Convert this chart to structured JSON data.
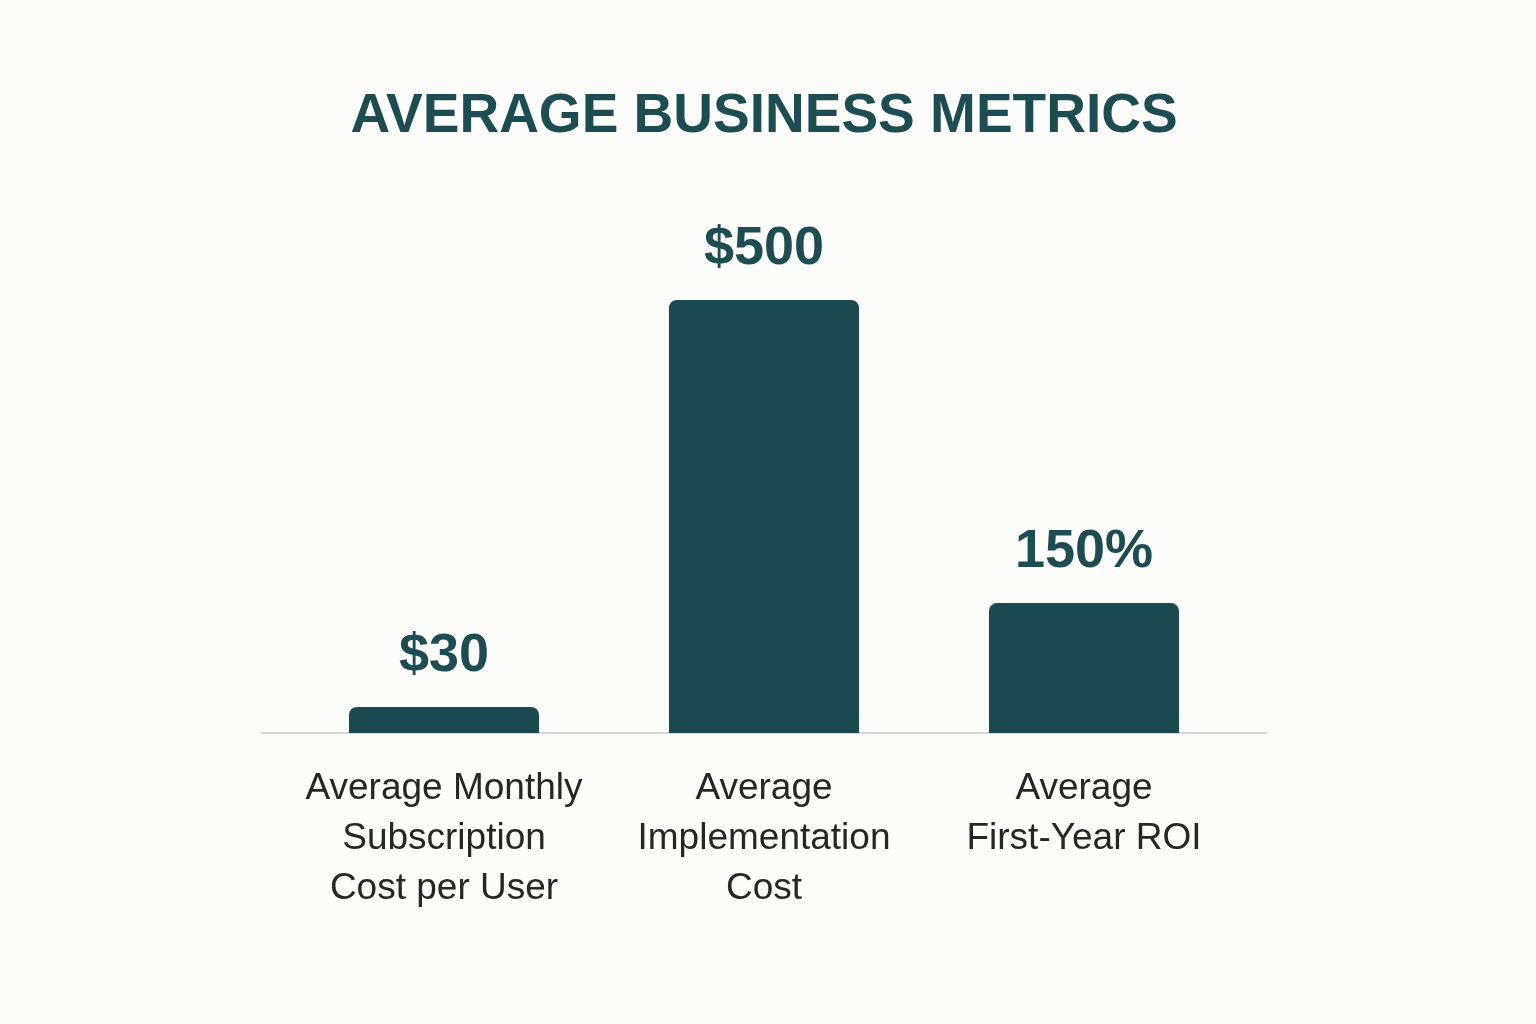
{
  "chart_data": {
    "type": "bar",
    "title": "AVERAGE BUSINESS METRICS",
    "categories": [
      "Average Monthly Subscription Cost per User",
      "Average Implementation Cost",
      "Average First-Year ROI"
    ],
    "values": [
      30,
      500,
      150
    ],
    "value_labels": [
      "$30",
      "$500",
      "150%"
    ],
    "color": "#1a4a4f",
    "tick_labels": "x"
  }
}
